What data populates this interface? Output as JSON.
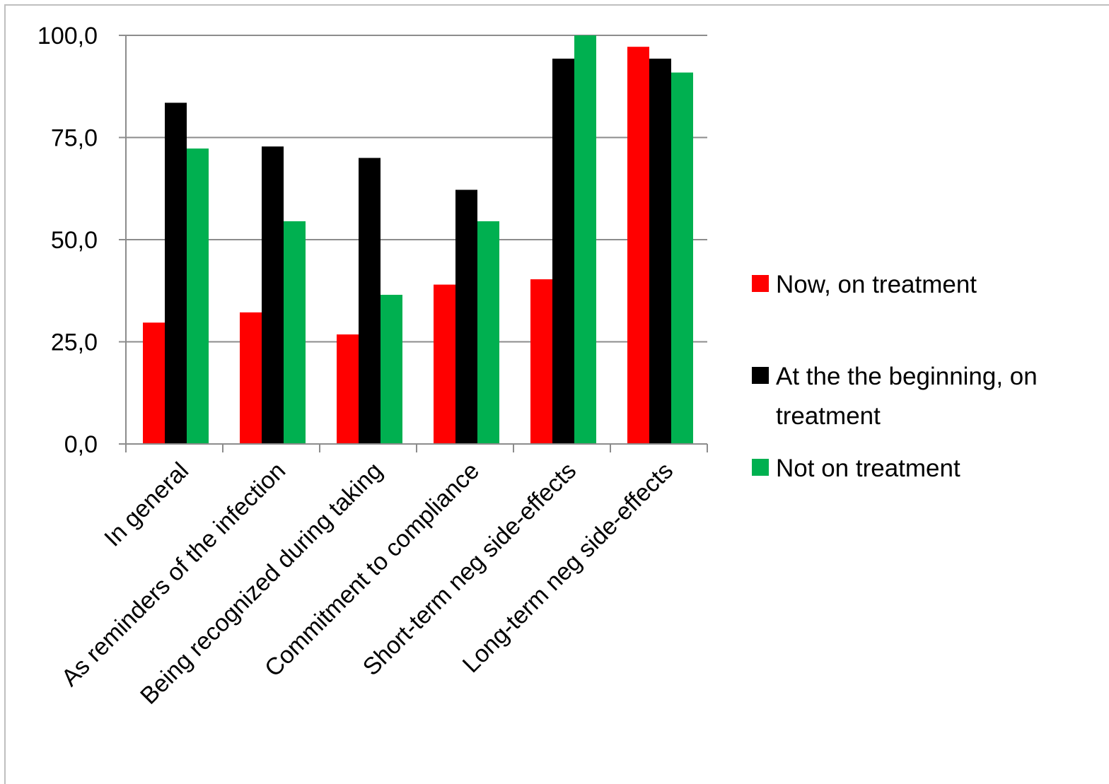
{
  "chart_data": {
    "type": "bar",
    "categories": [
      "In general",
      "As reminders of the infection",
      "Being recognized during taking",
      "Commitment to compliance",
      "Short-term neg side-effects",
      "Long-term neg side-effects"
    ],
    "series": [
      {
        "name": "Now, on treatment",
        "color": "#ff0000",
        "values": [
          29.7,
          32.2,
          26.8,
          39.0,
          40.3,
          97.2
        ]
      },
      {
        "name": "At the the beginning, on treatment",
        "color": "#000000",
        "values": [
          83.5,
          72.8,
          70.0,
          62.2,
          94.3,
          94.3
        ]
      },
      {
        "name": "Not on treatment",
        "color": "#00b050",
        "values": [
          72.3,
          54.5,
          36.5,
          54.5,
          100.0,
          90.9
        ]
      }
    ],
    "legend_lines": [
      [
        "Now, on treatment"
      ],
      [
        "At the the beginning, on",
        "treatment"
      ],
      [
        "Not on treatment"
      ]
    ],
    "y_ticks": [
      "0,0",
      "25,0",
      "50,0",
      "75,0",
      "100,0"
    ],
    "ylim": [
      0,
      100
    ],
    "title": "",
    "xlabel": "",
    "ylabel": "",
    "grid": true,
    "legend_position": "right"
  }
}
